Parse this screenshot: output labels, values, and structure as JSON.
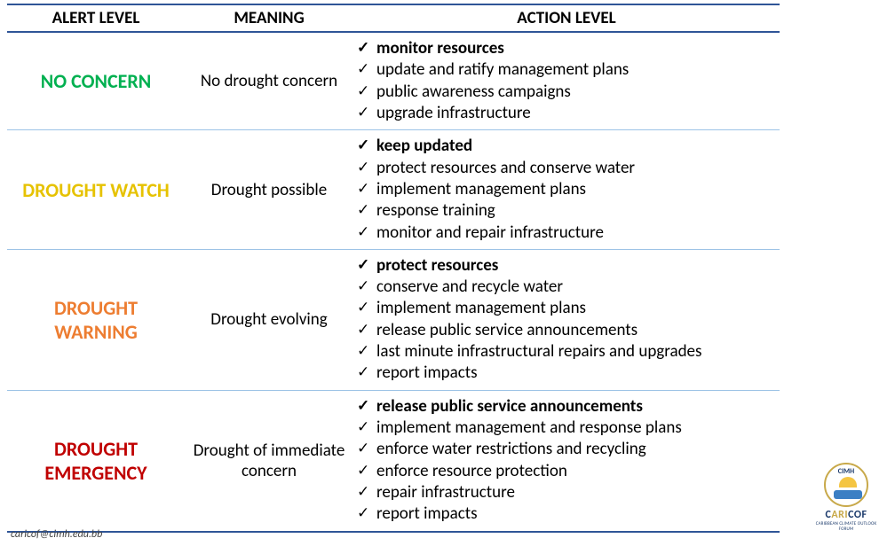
{
  "headers": {
    "alert": "ALERT LEVEL",
    "meaning": "MEANING",
    "action": "ACTION LEVEL"
  },
  "rows": [
    {
      "alert": "NO CONCERN",
      "alert_color": "#00b050",
      "meaning": "No drought concern",
      "actions": [
        {
          "text": "monitor resources",
          "bold": true
        },
        {
          "text": "update and ratify management plans",
          "bold": false
        },
        {
          "text": "public awareness campaigns",
          "bold": false
        },
        {
          "text": "upgrade infrastructure",
          "bold": false
        }
      ]
    },
    {
      "alert": "DROUGHT WATCH",
      "alert_color": "#e6c200",
      "meaning": "Drought possible",
      "actions": [
        {
          "text": "keep updated",
          "bold": true
        },
        {
          "text": "protect resources and conserve water",
          "bold": false
        },
        {
          "text": "implement management plans",
          "bold": false
        },
        {
          "text": "response training",
          "bold": false
        },
        {
          "text": "monitor and repair infrastructure",
          "bold": false
        }
      ]
    },
    {
      "alert": "DROUGHT WARNING",
      "alert_color": "#ed7d31",
      "meaning": "Drought evolving",
      "actions": [
        {
          "text": "protect resources",
          "bold": true
        },
        {
          "text": "conserve and recycle water",
          "bold": false
        },
        {
          "text": "implement management plans",
          "bold": false
        },
        {
          "text": "release public service announcements",
          "bold": false
        },
        {
          "text": "last minute infrastructural repairs and upgrades",
          "bold": false
        },
        {
          "text": "report impacts",
          "bold": false
        }
      ]
    },
    {
      "alert": "DROUGHT EMERGENCY",
      "alert_color": "#c00000",
      "meaning": "Drought of immediate concern",
      "actions": [
        {
          "text": "release public service announcements",
          "bold": true
        },
        {
          "text": "implement management and response plans",
          "bold": false
        },
        {
          "text": "enforce water restrictions and recycling",
          "bold": false
        },
        {
          "text": "enforce resource protection",
          "bold": false
        },
        {
          "text": "repair infrastructure",
          "bold": false
        },
        {
          "text": "report impacts",
          "bold": false
        }
      ]
    }
  ],
  "footer_email": "caricof@cimh.edu.bb",
  "logo": {
    "cimh": "CIMH",
    "title_c1": "C",
    "title_c2": "ARI",
    "title_c3": "COF",
    "subtitle": "CARIBBEAN CLIMATE OUTLOOK FORUM"
  }
}
